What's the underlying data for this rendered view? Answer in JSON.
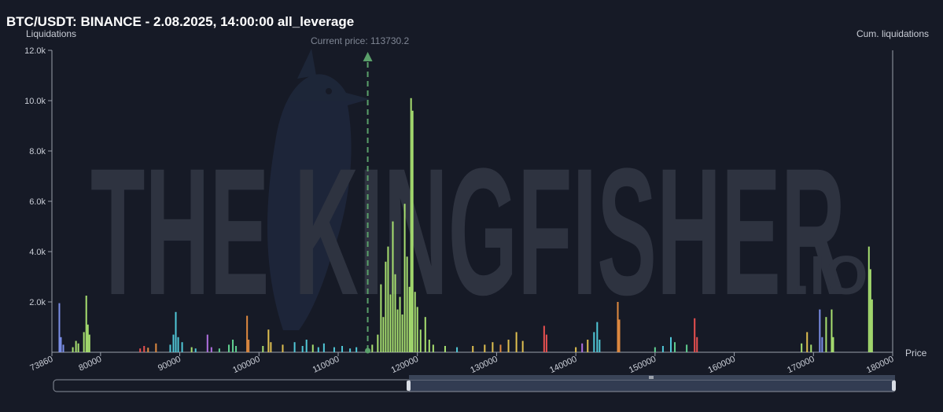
{
  "header": {
    "title": "BTC/USDT: BINANCE - 2.08.2025, 14:00:00 all_leverage"
  },
  "watermark": {
    "text": "THE KINGFISHER",
    "suffix": ".IO"
  },
  "chart_data": {
    "type": "bar",
    "ylabel": "Liquidations",
    "ylabel_right": "Cum. liquidations",
    "xlabel": "Price",
    "ylim": [
      0,
      12000
    ],
    "xlim": [
      73860,
      180000
    ],
    "yticks": [
      "2.0k",
      "4.0k",
      "6.0k",
      "8.0k",
      "10.0k",
      "12.0k"
    ],
    "ytick_values": [
      2000,
      4000,
      6000,
      8000,
      10000,
      12000
    ],
    "xticks": [
      "73860",
      "80000",
      "90000",
      "100000",
      "110000",
      "120000",
      "130000",
      "140000",
      "150000",
      "160000",
      "170000",
      "180000"
    ],
    "xtick_values": [
      73860,
      80000,
      90000,
      100000,
      110000,
      120000,
      130000,
      140000,
      150000,
      160000,
      170000,
      180000
    ],
    "current_price_label": "Current price: 113730.2",
    "current_price": 113730.2,
    "grid": false,
    "colors": {
      "axis": "#9aa0ab",
      "current_price_line": "#5aa06a",
      "palette": [
        "#7b8fe8",
        "#a8e070",
        "#e08a40",
        "#50c8d8",
        "#b070e0",
        "#e85050",
        "#e0c050",
        "#60d090"
      ]
    },
    "bars": [
      {
        "x": 74800,
        "y": 1950,
        "c": 0
      },
      {
        "x": 75000,
        "y": 600,
        "c": 0
      },
      {
        "x": 75300,
        "y": 300,
        "c": 0
      },
      {
        "x": 76500,
        "y": 200,
        "c": 1
      },
      {
        "x": 76900,
        "y": 450,
        "c": 1
      },
      {
        "x": 77200,
        "y": 350,
        "c": 1
      },
      {
        "x": 77900,
        "y": 800,
        "c": 1
      },
      {
        "x": 78200,
        "y": 2250,
        "c": 1
      },
      {
        "x": 78400,
        "y": 1100,
        "c": 1
      },
      {
        "x": 78600,
        "y": 700,
        "c": 1
      },
      {
        "x": 85000,
        "y": 150,
        "c": 5
      },
      {
        "x": 85500,
        "y": 250,
        "c": 5
      },
      {
        "x": 86000,
        "y": 180,
        "c": 2
      },
      {
        "x": 87000,
        "y": 350,
        "c": 2
      },
      {
        "x": 88800,
        "y": 300,
        "c": 3
      },
      {
        "x": 89200,
        "y": 700,
        "c": 3
      },
      {
        "x": 89500,
        "y": 1600,
        "c": 3
      },
      {
        "x": 89800,
        "y": 600,
        "c": 3
      },
      {
        "x": 90300,
        "y": 400,
        "c": 3
      },
      {
        "x": 91500,
        "y": 200,
        "c": 1
      },
      {
        "x": 92000,
        "y": 150,
        "c": 3
      },
      {
        "x": 93500,
        "y": 700,
        "c": 4
      },
      {
        "x": 94000,
        "y": 200,
        "c": 4
      },
      {
        "x": 95000,
        "y": 150,
        "c": 7
      },
      {
        "x": 96200,
        "y": 300,
        "c": 7
      },
      {
        "x": 96700,
        "y": 500,
        "c": 7
      },
      {
        "x": 97100,
        "y": 250,
        "c": 7
      },
      {
        "x": 98500,
        "y": 1450,
        "c": 2
      },
      {
        "x": 98700,
        "y": 500,
        "c": 2
      },
      {
        "x": 100500,
        "y": 250,
        "c": 1
      },
      {
        "x": 101200,
        "y": 900,
        "c": 6
      },
      {
        "x": 101500,
        "y": 400,
        "c": 6
      },
      {
        "x": 103000,
        "y": 300,
        "c": 6
      },
      {
        "x": 104500,
        "y": 400,
        "c": 3
      },
      {
        "x": 105500,
        "y": 250,
        "c": 3
      },
      {
        "x": 106000,
        "y": 500,
        "c": 3
      },
      {
        "x": 106800,
        "y": 300,
        "c": 1
      },
      {
        "x": 107500,
        "y": 200,
        "c": 3
      },
      {
        "x": 108200,
        "y": 350,
        "c": 3
      },
      {
        "x": 109500,
        "y": 200,
        "c": 3
      },
      {
        "x": 110500,
        "y": 250,
        "c": 3
      },
      {
        "x": 111500,
        "y": 150,
        "c": 3
      },
      {
        "x": 112300,
        "y": 200,
        "c": 3
      },
      {
        "x": 114300,
        "y": 300,
        "c": 1
      },
      {
        "x": 115000,
        "y": 700,
        "c": 1
      },
      {
        "x": 115400,
        "y": 2700,
        "c": 1
      },
      {
        "x": 115700,
        "y": 1400,
        "c": 1
      },
      {
        "x": 116000,
        "y": 3600,
        "c": 1
      },
      {
        "x": 116300,
        "y": 4200,
        "c": 1
      },
      {
        "x": 116600,
        "y": 2300,
        "c": 1
      },
      {
        "x": 116900,
        "y": 5200,
        "c": 1
      },
      {
        "x": 117200,
        "y": 3100,
        "c": 1
      },
      {
        "x": 117500,
        "y": 1700,
        "c": 1
      },
      {
        "x": 117800,
        "y": 2200,
        "c": 1
      },
      {
        "x": 118100,
        "y": 1500,
        "c": 1
      },
      {
        "x": 118400,
        "y": 5900,
        "c": 1
      },
      {
        "x": 118700,
        "y": 3800,
        "c": 1
      },
      {
        "x": 119000,
        "y": 2600,
        "c": 1
      },
      {
        "x": 119200,
        "y": 10100,
        "c": 1
      },
      {
        "x": 119400,
        "y": 9600,
        "c": 1
      },
      {
        "x": 119700,
        "y": 2400,
        "c": 1
      },
      {
        "x": 120000,
        "y": 1800,
        "c": 1
      },
      {
        "x": 120400,
        "y": 900,
        "c": 1
      },
      {
        "x": 121000,
        "y": 1400,
        "c": 1
      },
      {
        "x": 121500,
        "y": 500,
        "c": 1
      },
      {
        "x": 122000,
        "y": 300,
        "c": 1
      },
      {
        "x": 123500,
        "y": 250,
        "c": 1
      },
      {
        "x": 125000,
        "y": 200,
        "c": 3
      },
      {
        "x": 127000,
        "y": 250,
        "c": 6
      },
      {
        "x": 128500,
        "y": 300,
        "c": 6
      },
      {
        "x": 129500,
        "y": 400,
        "c": 6
      },
      {
        "x": 130500,
        "y": 300,
        "c": 2
      },
      {
        "x": 131500,
        "y": 500,
        "c": 6
      },
      {
        "x": 132500,
        "y": 800,
        "c": 6
      },
      {
        "x": 133300,
        "y": 450,
        "c": 6
      },
      {
        "x": 136000,
        "y": 1050,
        "c": 5
      },
      {
        "x": 136300,
        "y": 700,
        "c": 5
      },
      {
        "x": 140000,
        "y": 200,
        "c": 6
      },
      {
        "x": 140800,
        "y": 350,
        "c": 4
      },
      {
        "x": 141500,
        "y": 500,
        "c": 6
      },
      {
        "x": 142300,
        "y": 800,
        "c": 3
      },
      {
        "x": 142700,
        "y": 1200,
        "c": 3
      },
      {
        "x": 143000,
        "y": 500,
        "c": 3
      },
      {
        "x": 145300,
        "y": 2000,
        "c": 2
      },
      {
        "x": 145500,
        "y": 1300,
        "c": 2
      },
      {
        "x": 150000,
        "y": 200,
        "c": 7
      },
      {
        "x": 151000,
        "y": 250,
        "c": 3
      },
      {
        "x": 152000,
        "y": 600,
        "c": 3
      },
      {
        "x": 152500,
        "y": 400,
        "c": 7
      },
      {
        "x": 154000,
        "y": 300,
        "c": 7
      },
      {
        "x": 155000,
        "y": 1350,
        "c": 5
      },
      {
        "x": 155300,
        "y": 600,
        "c": 5
      },
      {
        "x": 168500,
        "y": 350,
        "c": 1
      },
      {
        "x": 169200,
        "y": 800,
        "c": 6
      },
      {
        "x": 169700,
        "y": 300,
        "c": 1
      },
      {
        "x": 170800,
        "y": 1700,
        "c": 0
      },
      {
        "x": 171100,
        "y": 600,
        "c": 0
      },
      {
        "x": 171600,
        "y": 1400,
        "c": 1
      },
      {
        "x": 172300,
        "y": 1700,
        "c": 1
      },
      {
        "x": 172500,
        "y": 600,
        "c": 1
      },
      {
        "x": 177000,
        "y": 4200,
        "c": 1
      },
      {
        "x": 177200,
        "y": 3300,
        "c": 1
      },
      {
        "x": 177400,
        "y": 2100,
        "c": 1
      }
    ]
  }
}
